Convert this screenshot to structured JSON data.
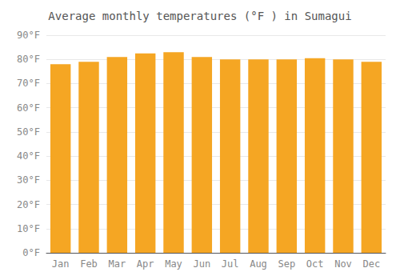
{
  "chart_data": {
    "type": "bar",
    "title": "Average monthly temperatures (°F ) in Sumagui",
    "categories": [
      "Jan",
      "Feb",
      "Mar",
      "Apr",
      "May",
      "Jun",
      "Jul",
      "Aug",
      "Sep",
      "Oct",
      "Nov",
      "Dec"
    ],
    "values": [
      78.0,
      79.0,
      81.0,
      82.5,
      83.0,
      81.0,
      80.0,
      80.0,
      80.0,
      80.5,
      80.0,
      79.0
    ],
    "color": "#F5A623",
    "ylim": [
      0,
      90
    ],
    "yticks": [
      {
        "value": 0,
        "label": "0°F"
      },
      {
        "value": 10,
        "label": "10°F"
      },
      {
        "value": 20,
        "label": "20°F"
      },
      {
        "value": 30,
        "label": "30°F"
      },
      {
        "value": 40,
        "label": "40°F"
      },
      {
        "value": 50,
        "label": "50°F"
      },
      {
        "value": 60,
        "label": "60°F"
      },
      {
        "value": 70,
        "label": "70°F"
      },
      {
        "value": 80,
        "label": "80°F"
      },
      {
        "value": 90,
        "label": "90°F"
      }
    ],
    "grid": true
  }
}
